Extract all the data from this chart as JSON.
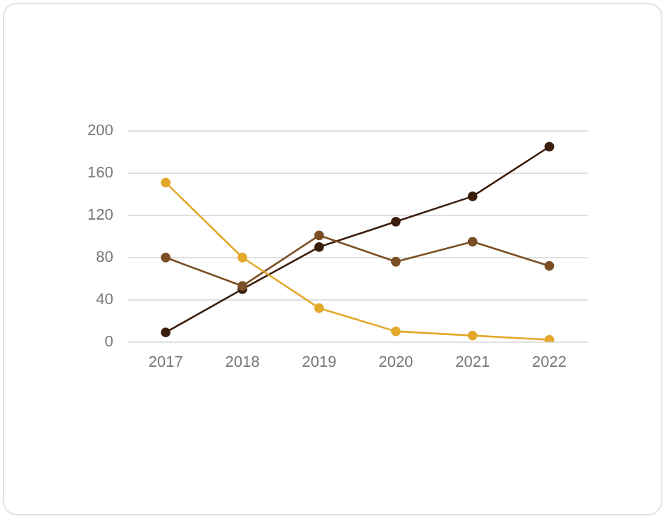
{
  "chart_data": {
    "type": "line",
    "categories": [
      "2017",
      "2018",
      "2019",
      "2020",
      "2021",
      "2022"
    ],
    "series": [
      {
        "color": "#3a1e0c",
        "values": [
          9,
          50,
          90,
          114,
          138,
          185
        ]
      },
      {
        "color": "#7b4f25",
        "values": [
          80,
          53,
          101,
          76,
          95,
          72
        ]
      },
      {
        "color": "#e3a82b",
        "values": [
          151,
          80,
          32,
          10,
          6,
          2
        ]
      }
    ],
    "ylim": [
      0,
      200
    ],
    "yticks": [
      0,
      40,
      80,
      120,
      160,
      200
    ],
    "grid": "y",
    "legend": false,
    "marker": "circle"
  }
}
